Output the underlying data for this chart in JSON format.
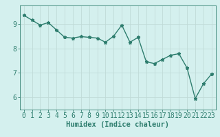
{
  "title": "",
  "xlabel": "Humidex (Indice chaleur)",
  "ylabel": "",
  "x": [
    0,
    1,
    2,
    3,
    4,
    5,
    6,
    7,
    8,
    9,
    10,
    11,
    12,
    13,
    14,
    15,
    16,
    17,
    18,
    19,
    20,
    21,
    22,
    23
  ],
  "y": [
    9.35,
    9.15,
    8.95,
    9.05,
    8.75,
    8.45,
    8.42,
    8.48,
    8.45,
    8.42,
    8.25,
    8.5,
    8.95,
    8.25,
    8.45,
    7.45,
    7.38,
    7.55,
    7.72,
    7.78,
    7.2,
    5.95,
    6.55,
    6.95
  ],
  "line_color": "#2e7d6e",
  "marker": "*",
  "marker_size": 3.5,
  "background_color": "#d4f0ee",
  "grid_color": "#c0dbd8",
  "tick_color": "#2e7d6e",
  "label_color": "#2e7d6e",
  "ylim": [
    5.5,
    9.75
  ],
  "yticks": [
    6,
    7,
    8,
    9
  ],
  "xticks": [
    0,
    1,
    2,
    3,
    4,
    5,
    6,
    7,
    8,
    9,
    10,
    11,
    12,
    13,
    14,
    15,
    16,
    17,
    18,
    19,
    20,
    21,
    22,
    23
  ],
  "xlabel_fontsize": 7.5,
  "tick_fontsize": 7,
  "line_width": 1.0
}
